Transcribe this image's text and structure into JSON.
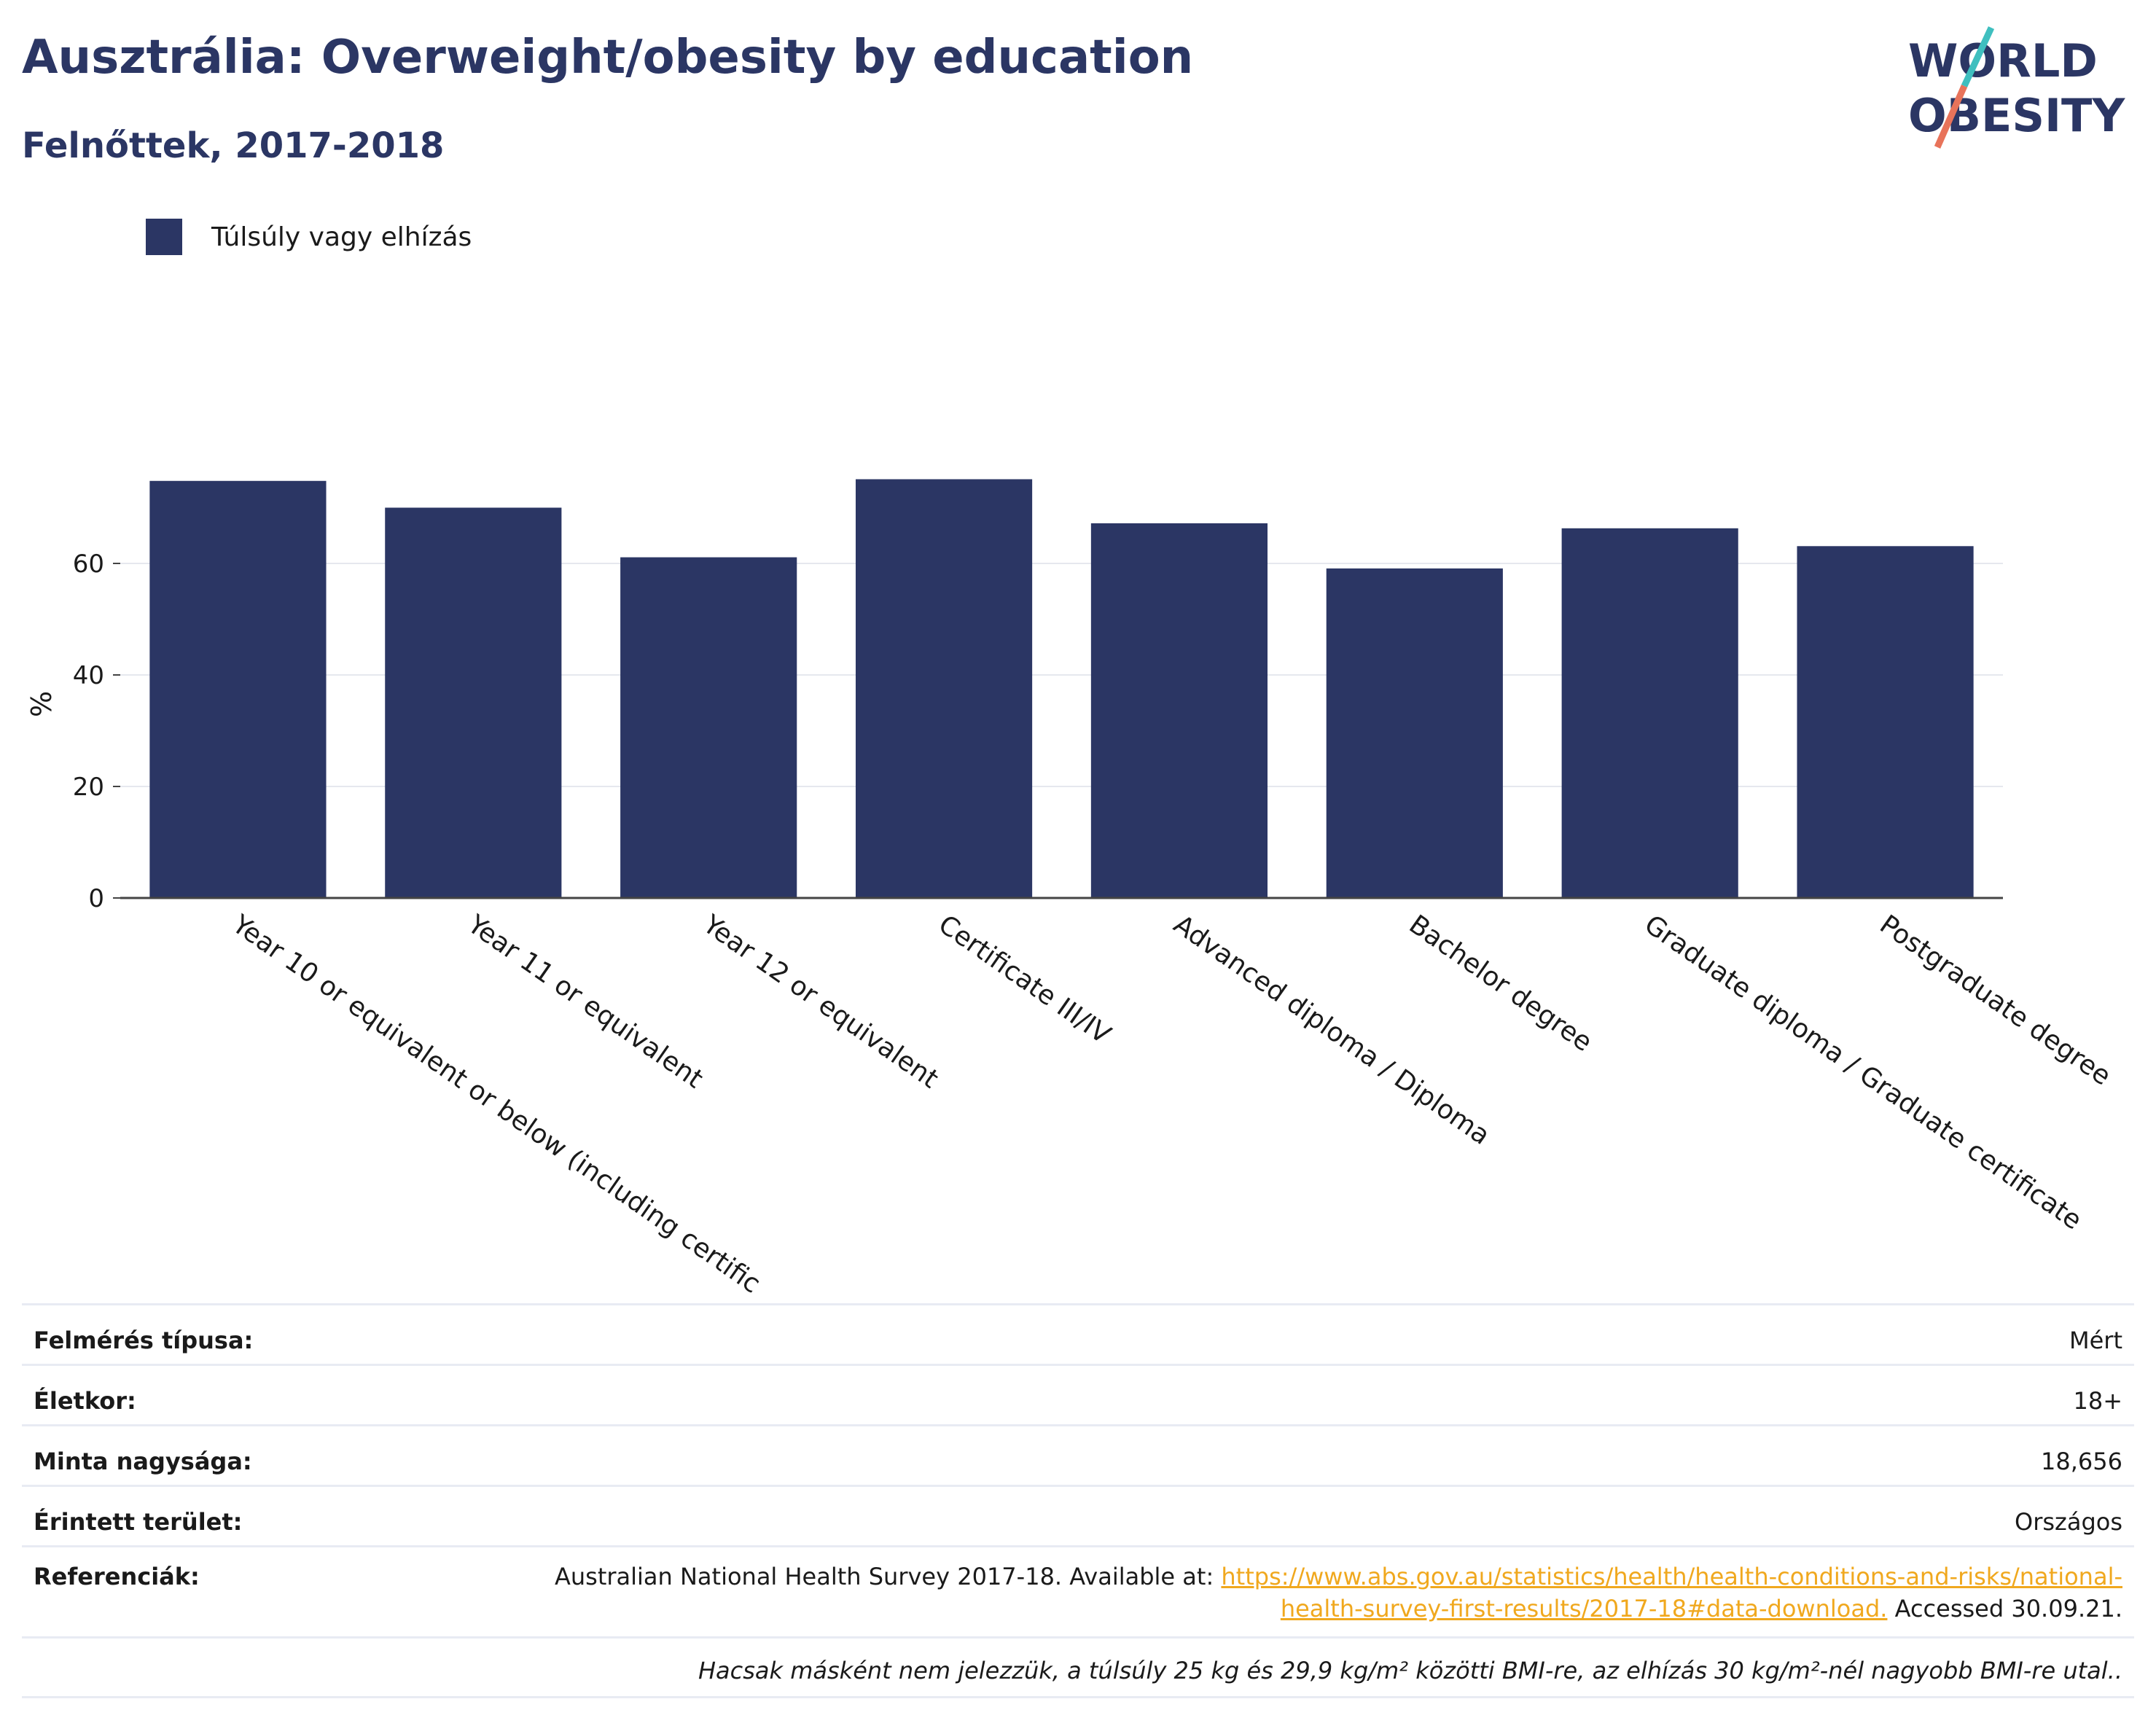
{
  "header": {
    "title": "Ausztrália: Overweight/obesity by education",
    "subtitle": "Felnőttek, 2017-2018"
  },
  "logo": {
    "line1": "WORLD",
    "line2": "OBESITY",
    "colors": {
      "text": "#2b3664",
      "slash_top": "#3fbfbf",
      "slash_bottom": "#e8735a"
    }
  },
  "legend": {
    "label": "Túlsúly vagy elhízás",
    "color": "#2b3664"
  },
  "chart_data": {
    "type": "bar",
    "categories": [
      "Year 10 or equivalent or below (including certific",
      "Year 11 or equivalent",
      "Year 12 or equivalent",
      "Certificate III/IV",
      "Advanced diploma / Diploma",
      "Bachelor degree",
      "Graduate diploma / Graduate certificate",
      "Postgraduate degree"
    ],
    "series": [
      {
        "name": "Túlsúly vagy elhízás",
        "values": [
          74.8,
          70.0,
          61.1,
          75.1,
          67.2,
          59.1,
          66.3,
          63.1
        ],
        "color": "#2b3664"
      }
    ],
    "ylabel": "%",
    "xlabel": "",
    "ylim": [
      0,
      80
    ],
    "yticks": [
      0,
      20,
      40,
      60
    ],
    "grid": true
  },
  "meta": {
    "survey_type": {
      "label": "Felmérés típusa:",
      "value": "Mért"
    },
    "age": {
      "label": "Életkor:",
      "value": "18+"
    },
    "sample_size": {
      "label": "Minta nagysága:",
      "value": "18,656"
    },
    "area": {
      "label": "Érintett terület:",
      "value": "Országos"
    },
    "references": {
      "label": "Referenciák:",
      "text_before": "Australian National Health Survey 2017-18. Available at: ",
      "link_line1": "https://www.abs.gov.au/statistics/health/health-conditions-and-risks/national-",
      "link_line2": "health-survey-first-results/2017-18#data-download.",
      "text_after": " Accessed 30.09.21."
    },
    "note": "Hacsak másként nem jelezzük, a túlsúly 25 kg és 29,9 kg/m² közötti BMI-re, az elhízás 30 kg/m²-nél nagyobb BMI-re utal.."
  }
}
